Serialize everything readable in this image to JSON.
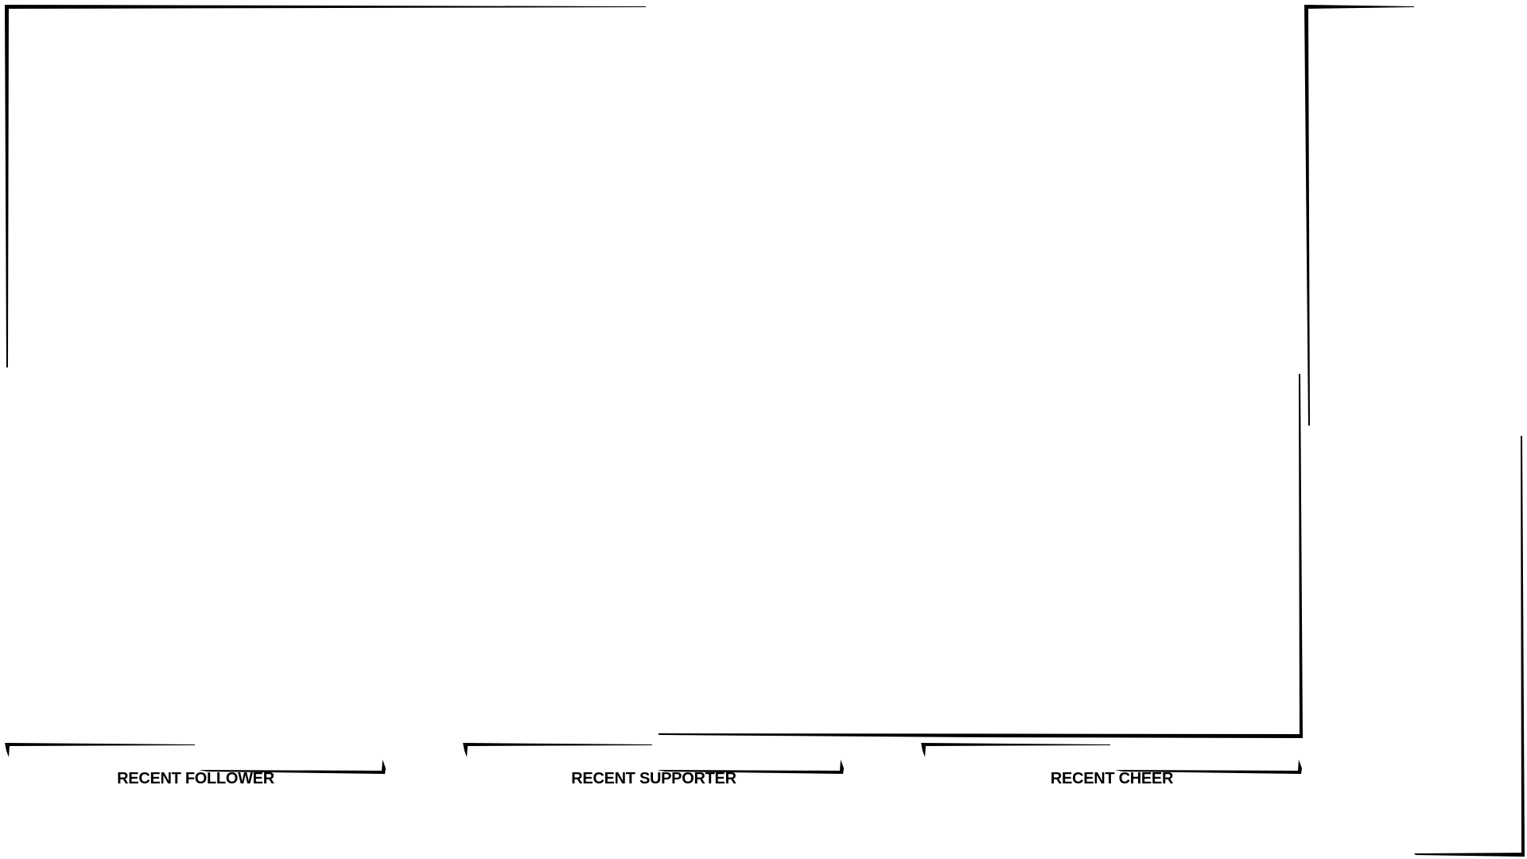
{
  "overlay": {
    "stroke_color": "#000000",
    "background_color": "#ffffff",
    "alerts": [
      {
        "label": "RECENT FOLLOWER"
      },
      {
        "label": "RECENT SUPPORTER"
      },
      {
        "label": "RECENT CHEER"
      }
    ]
  }
}
